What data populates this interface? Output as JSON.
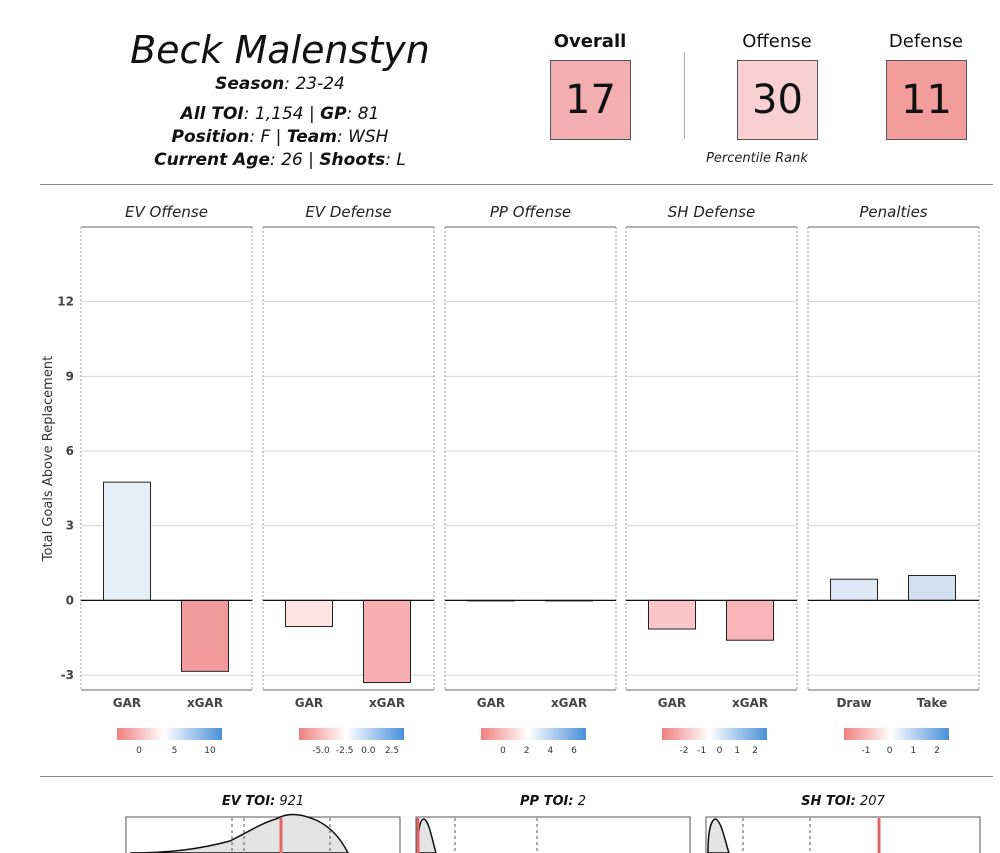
{
  "player": {
    "name": "Beck Malenstyn",
    "season_label": "Season",
    "season": "23-24",
    "toi_label": "All TOI",
    "toi": "1,154",
    "gp_label": "GP",
    "gp": "81",
    "position_label": "Position",
    "position": "F",
    "team_label": "Team",
    "team": "WSH",
    "age_label": "Current Age",
    "age": "26",
    "shoots_label": "Shoots",
    "shoots": "L"
  },
  "ranks": {
    "overall": {
      "label": "Overall",
      "value": "17",
      "color": "#f3aeb0"
    },
    "offense": {
      "label": "Offense",
      "value": "30",
      "color": "#f8d0d2"
    },
    "defense": {
      "label": "Defense",
      "value": "11",
      "color": "#f29c9c"
    },
    "caption": "Percentile Rank"
  },
  "chart_data": [
    {
      "type": "bar",
      "ylabel": "Total Goals Above Replacement",
      "ylim": [
        -3.6,
        15
      ],
      "yticks": [
        -3,
        0,
        3,
        6,
        9,
        12
      ],
      "grid": true,
      "panels": [
        {
          "title": "EV Offense",
          "categories": [
            "GAR",
            "xGAR"
          ],
          "values": [
            4.75,
            -2.85
          ],
          "colors": [
            "#e6eef8",
            "#f29a9c"
          ],
          "colorbar": {
            "ticks": [
              "0",
              "5",
              "10"
            ]
          }
        },
        {
          "title": "EV Defense",
          "categories": [
            "GAR",
            "xGAR"
          ],
          "values": [
            -1.05,
            -3.3
          ],
          "colors": [
            "#fde3e4",
            "#f7afb2"
          ],
          "colorbar": {
            "ticks": [
              "-5.0",
              "-2.5",
              "0.0",
              "2.5"
            ]
          }
        },
        {
          "title": "PP Offense",
          "categories": [
            "GAR",
            "xGAR"
          ],
          "values": [
            0,
            0
          ],
          "colors": [
            "#f4f4f4",
            "#f4f4f4"
          ],
          "colorbar": {
            "ticks": [
              "0",
              "2",
              "4",
              "6"
            ]
          }
        },
        {
          "title": "SH Defense",
          "categories": [
            "GAR",
            "xGAR"
          ],
          "values": [
            -1.15,
            -1.6
          ],
          "colors": [
            "#fbc6c8",
            "#f8b4b7"
          ],
          "colorbar": {
            "ticks": [
              "-2",
              "-1",
              "0",
              "1",
              "2"
            ]
          }
        },
        {
          "title": "Penalties",
          "categories": [
            "Draw",
            "Take"
          ],
          "values": [
            0.85,
            1.0
          ],
          "colors": [
            "#dde7f6",
            "#d3e0f3"
          ],
          "colorbar": {
            "ticks": [
              "-1",
              "0",
              "1",
              "2"
            ]
          }
        }
      ]
    },
    {
      "type": "area",
      "panels": [
        {
          "label": "EV TOI",
          "value": "921"
        },
        {
          "label": "PP TOI",
          "value": "2"
        },
        {
          "label": "SH TOI",
          "value": "207"
        }
      ]
    }
  ]
}
